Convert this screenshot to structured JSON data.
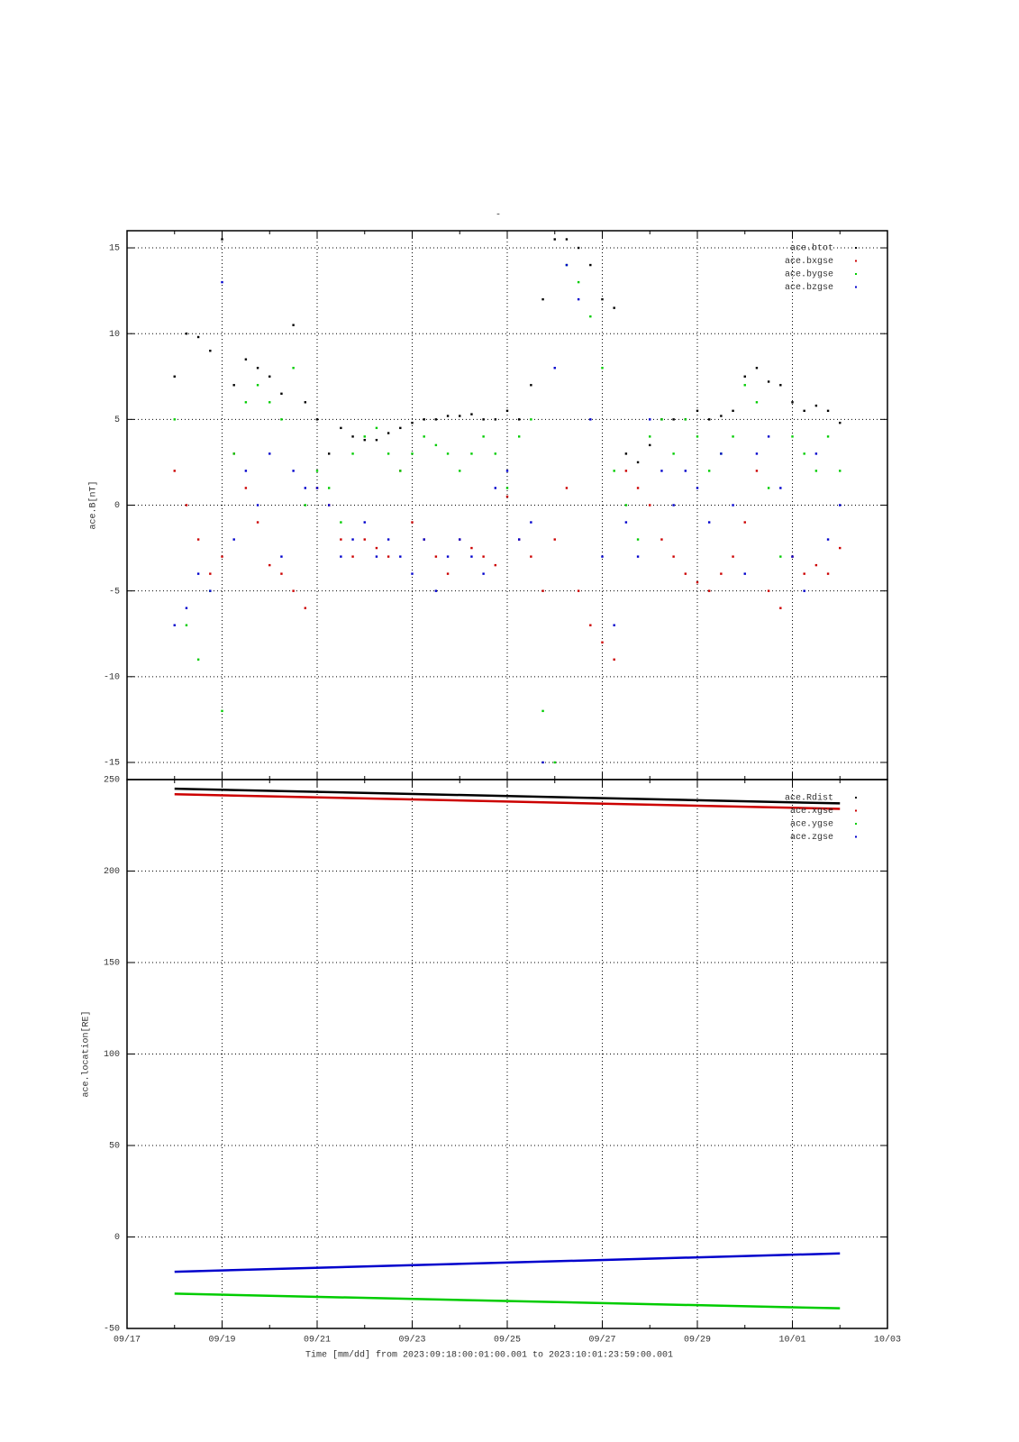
{
  "chart_data": [
    {
      "type": "scatter",
      "title": "-",
      "ylabel": "ace.B[nT]",
      "x": [
        1,
        1.25,
        1.5,
        1.75,
        2,
        2.25,
        2.5,
        2.75,
        3,
        3.25,
        3.5,
        3.75,
        4,
        4.25,
        4.5,
        4.75,
        5,
        5.25,
        5.5,
        5.75,
        6,
        6.25,
        6.5,
        6.75,
        7,
        7.25,
        7.5,
        7.75,
        8,
        8.25,
        8.5,
        8.75,
        9,
        9.25,
        9.5,
        9.75,
        10,
        10.25,
        10.5,
        10.75,
        11,
        11.25,
        11.5,
        11.75,
        12,
        12.25,
        12.5,
        12.75,
        13,
        13.25,
        13.5,
        13.75,
        14,
        14.25,
        14.5,
        14.75,
        15
      ],
      "series": [
        {
          "name": "ace.btot",
          "color": "#000000",
          "values": [
            7.5,
            10,
            9.8,
            9,
            15.5,
            7,
            8.5,
            8,
            7.5,
            6.5,
            10.5,
            6,
            5,
            3,
            4.5,
            4,
            3.8,
            3.8,
            4.2,
            4.5,
            4.8,
            5,
            5,
            5.2,
            5.2,
            5.3,
            5,
            5,
            5.5,
            5,
            7,
            12,
            15.5,
            15.5,
            15,
            14,
            12,
            11.5,
            3,
            2.5,
            3.5,
            5,
            5,
            5,
            5.5,
            5,
            5.2,
            5.5,
            7.5,
            8,
            7.2,
            7,
            6,
            5.5,
            5.8,
            5.5,
            4.8
          ]
        },
        {
          "name": "ace.bxgse",
          "color": "#cc0000",
          "values": [
            2,
            0,
            -2,
            -4,
            -3,
            3,
            1,
            -1,
            -3.5,
            -4,
            -5,
            -6,
            1,
            0,
            -2,
            -3,
            -2,
            -2.5,
            -3,
            2,
            -1,
            -2,
            -3,
            -4,
            -2,
            -2.5,
            -3,
            -3.5,
            0.5,
            -2,
            -3,
            -5,
            -2,
            1,
            -5,
            -7,
            -8,
            -9,
            2,
            1,
            0,
            -2,
            -3,
            -4,
            -4.5,
            -5,
            -4,
            -3,
            -1,
            2,
            -5,
            -6,
            -3,
            -4,
            -3.5,
            -4,
            -2.5
          ]
        },
        {
          "name": "ace.bygse",
          "color": "#00cc00",
          "values": [
            5,
            -7,
            -9,
            -5,
            -12,
            3,
            6,
            7,
            6,
            5,
            8,
            0,
            2,
            1,
            -1,
            3,
            4,
            4.5,
            3,
            2,
            3,
            4,
            3.5,
            3,
            2,
            3,
            4,
            3,
            1,
            4,
            5,
            -12,
            -15,
            14,
            13,
            11,
            8,
            2,
            0,
            -2,
            4,
            5,
            3,
            5,
            4,
            2,
            3,
            4,
            7,
            6,
            1,
            -3,
            4,
            3,
            2,
            4,
            2
          ]
        },
        {
          "name": "ace.bzgse",
          "color": "#0000cc",
          "values": [
            -7,
            -6,
            -4,
            -5,
            13,
            -2,
            2,
            0,
            3,
            -3,
            2,
            1,
            1,
            0,
            -3,
            -2,
            -1,
            -3,
            -2,
            -3,
            -4,
            -2,
            -5,
            -3,
            -2,
            -3,
            -4,
            1,
            2,
            -2,
            -1,
            -15,
            8,
            14,
            12,
            5,
            -3,
            -7,
            -1,
            -3,
            5,
            2,
            0,
            2,
            1,
            -1,
            3,
            0,
            -4,
            3,
            4,
            1,
            -3,
            -5,
            3,
            -2,
            0
          ]
        }
      ],
      "xlim": [
        0,
        16
      ],
      "ylim": [
        -16,
        16
      ],
      "yticks": [
        -15,
        -10,
        -5,
        0,
        5,
        10,
        15
      ],
      "xticks": [
        {
          "value": 0,
          "label": "09/17"
        },
        {
          "value": 2,
          "label": "09/19"
        },
        {
          "value": 4,
          "label": "09/21"
        },
        {
          "value": 6,
          "label": "09/23"
        },
        {
          "value": 8,
          "label": "09/25"
        },
        {
          "value": 10,
          "label": "09/27"
        },
        {
          "value": 12,
          "label": "09/29"
        },
        {
          "value": 14,
          "label": "10/01"
        },
        {
          "value": 16,
          "label": "10/03"
        }
      ],
      "grid": true,
      "legend": "upper right"
    },
    {
      "type": "line",
      "ylabel": "ace.location[RE]",
      "xlabel": "Time [mm/dd]  from 2023:09:18:00:01:00.001  to  2023:10:01:23:59:00.001",
      "x": [
        1,
        15
      ],
      "series": [
        {
          "name": "ace.Rdist",
          "color": "#000000",
          "values": [
            245,
            237
          ]
        },
        {
          "name": "ace.xgse",
          "color": "#cc0000",
          "values": [
            242,
            234
          ]
        },
        {
          "name": "ace.ygse",
          "color": "#00cc00",
          "values": [
            -31,
            -39
          ]
        },
        {
          "name": "ace.zgse",
          "color": "#0000cc",
          "values": [
            -19,
            -9
          ]
        }
      ],
      "xlim": [
        0,
        16
      ],
      "ylim": [
        -50,
        250
      ],
      "yticks": [
        -50,
        0,
        50,
        100,
        150,
        200,
        250
      ],
      "xticks": [
        {
          "value": 0,
          "label": "09/17"
        },
        {
          "value": 2,
          "label": "09/19"
        },
        {
          "value": 4,
          "label": "09/21"
        },
        {
          "value": 6,
          "label": "09/23"
        },
        {
          "value": 8,
          "label": "09/25"
        },
        {
          "value": 10,
          "label": "09/27"
        },
        {
          "value": 12,
          "label": "09/29"
        },
        {
          "value": 14,
          "label": "10/01"
        },
        {
          "value": 16,
          "label": "10/03"
        }
      ],
      "grid": true,
      "legend": "upper right"
    }
  ]
}
